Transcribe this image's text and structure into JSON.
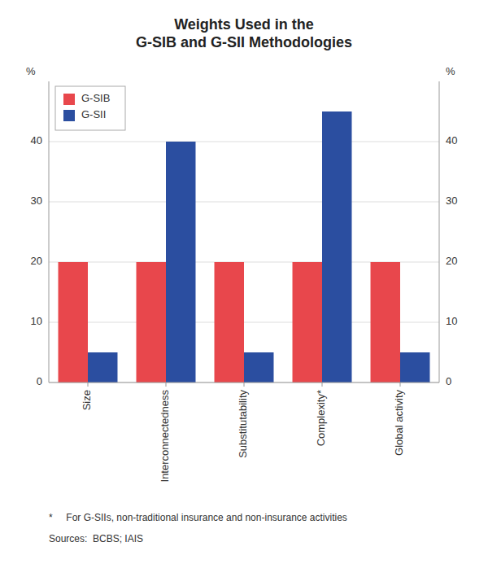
{
  "chart_data": {
    "type": "bar",
    "title": "Weights Used in the\nG-SIB and G-SII Methodologies",
    "categories": [
      "Size",
      "Interconnectedness",
      "Substitutability",
      "Complexity*",
      "Global activity"
    ],
    "series": [
      {
        "name": "G-SIB",
        "color": "#e8474c",
        "values": [
          20,
          20,
          20,
          20,
          20
        ]
      },
      {
        "name": "G-SII",
        "color": "#2b4ea0",
        "values": [
          5,
          40,
          5,
          45,
          5
        ]
      }
    ],
    "ylim": [
      0,
      50
    ],
    "yticks": [
      0,
      10,
      20,
      30,
      40
    ],
    "y2lim": [
      0,
      50
    ],
    "y2ticks": [
      0,
      10,
      20,
      30,
      40
    ],
    "ylabel": "%",
    "y2label": "%",
    "annotations": [
      "*     For G-SIIs, non-traditional insurance and non-insurance activities",
      "Sources:  BCBS; IAIS"
    ],
    "grid": true,
    "legend": "upper left"
  }
}
